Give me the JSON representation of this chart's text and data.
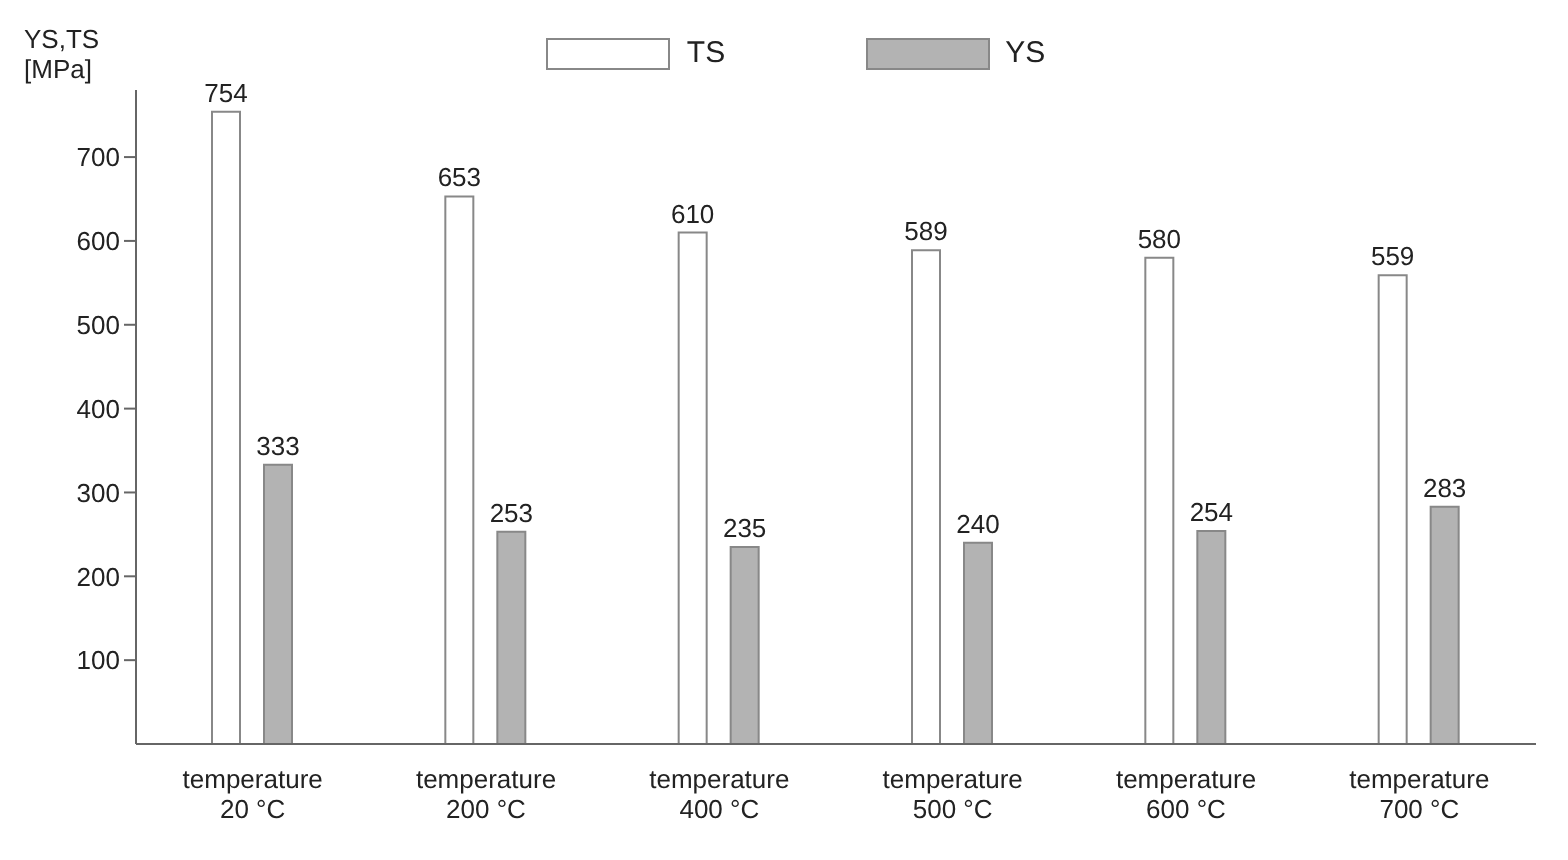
{
  "chart_data": {
    "type": "bar",
    "ylabel": "YS,TS [MPa]",
    "categories": [
      "temperature 20 °C",
      "temperature 200 °C",
      "temperature 400 °C",
      "temperature 500 °C",
      "temperature 600 °C",
      "temperature 700 °C"
    ],
    "series": [
      {
        "name": "TS",
        "color": "#ffffff",
        "values": [
          754,
          653,
          610,
          589,
          580,
          559
        ]
      },
      {
        "name": "YS",
        "color": "#b3b3b3",
        "values": [
          333,
          253,
          235,
          240,
          254,
          283
        ]
      }
    ],
    "ylim": [
      0,
      780
    ],
    "yticks": [
      100,
      200,
      300,
      400,
      500,
      600,
      700
    ],
    "data_labels": true,
    "legend": "top",
    "grid": false
  }
}
